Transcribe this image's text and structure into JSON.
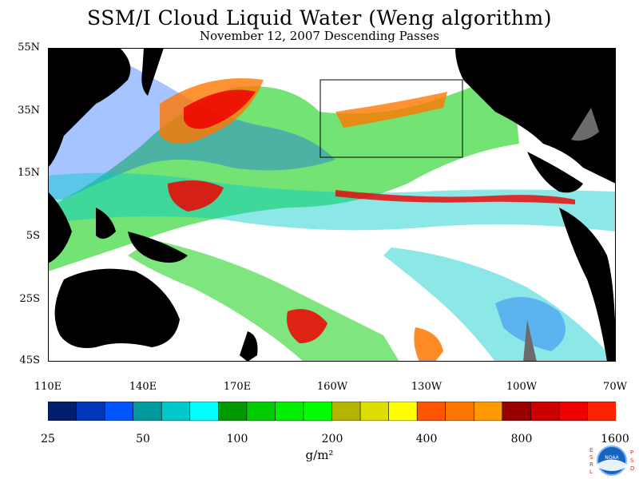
{
  "title": "SSM/I Cloud Liquid Water (Weng algorithm)",
  "subtitle": "November 12, 2007  Descending Passes",
  "lat_labels": [
    "55N",
    "35N",
    "15N",
    "5S",
    "25S",
    "45S"
  ],
  "lon_labels": [
    "110E",
    "140E",
    "170E",
    "160W",
    "130W",
    "100W",
    "70W"
  ],
  "colorbar": {
    "colors": [
      "#001f6e",
      "#0036b8",
      "#0055ff",
      "#00999e",
      "#00c9c9",
      "#00ffff",
      "#009900",
      "#00cc00",
      "#00ee00",
      "#00ff00",
      "#b3b300",
      "#dddd00",
      "#ffff00",
      "#ff5500",
      "#ff7700",
      "#ff9900",
      "#990000",
      "#cc0000",
      "#ee0000",
      "#ff2200"
    ],
    "labels": [
      "25",
      "50",
      "100",
      "200",
      "400",
      "800",
      "1600"
    ]
  },
  "units": "g/m²",
  "logo": {
    "left_letters": [
      "E",
      "S",
      "R",
      "L"
    ],
    "right_letters": [
      "P",
      "S",
      "D"
    ],
    "center_text": "NOAA"
  }
}
